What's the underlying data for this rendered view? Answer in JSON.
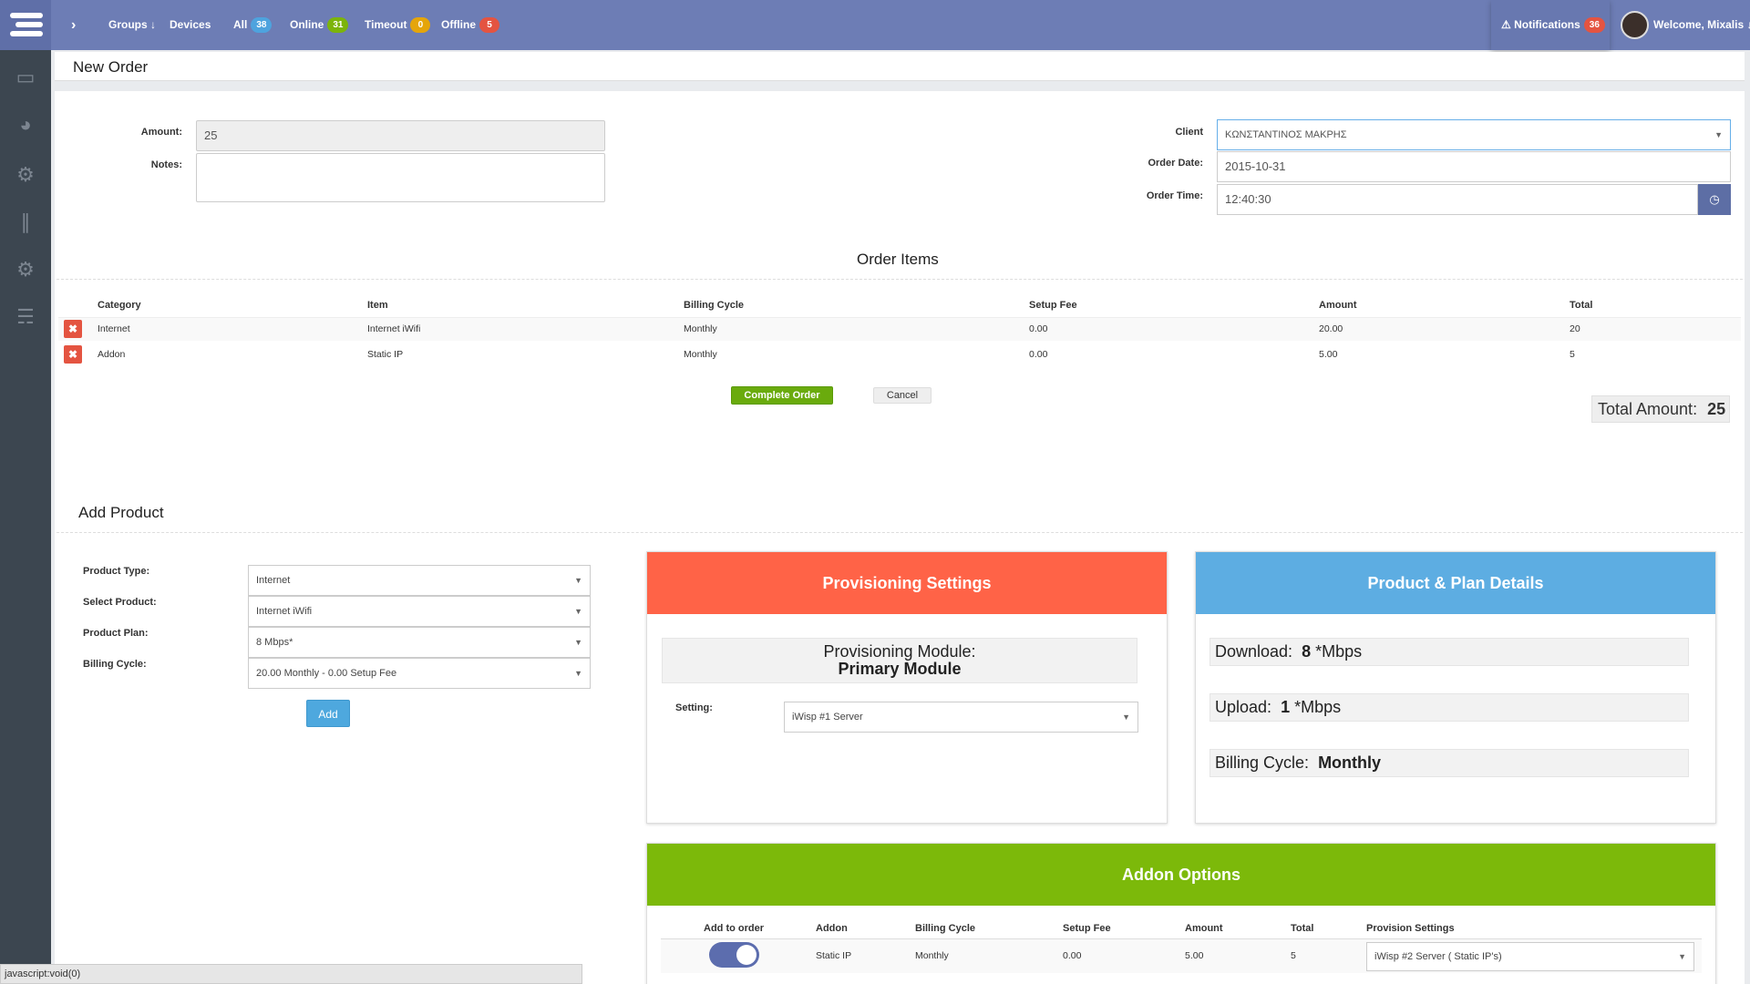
{
  "topbar": {
    "groups": "Groups",
    "devices": "Devices",
    "all_label": "All",
    "all_count": "38",
    "online_label": "Online",
    "online_count": "31",
    "timeout_label": "Timeout",
    "timeout_count": "0",
    "offline_label": "Offline",
    "offline_count": "5",
    "notifications_label": "Notifications",
    "notifications_count": "36",
    "welcome": "Welcome, Mixalis"
  },
  "page_title": "New Order",
  "order": {
    "amount_label": "Amount:",
    "amount_value": "25",
    "notes_label": "Notes:",
    "client_label": "Client",
    "client_value": "ΚΩΝΣΤΑΝΤΙΝΟΣ ΜΑΚΡΗΣ",
    "date_label": "Order Date:",
    "date_value": "2015-10-31",
    "time_label": "Order Time:",
    "time_value": "12:40:30"
  },
  "order_items": {
    "title": "Order Items",
    "columns": [
      "Category",
      "Item",
      "Billing Cycle",
      "Setup Fee",
      "Amount",
      "Total"
    ],
    "rows": [
      [
        "Internet",
        "Internet iWifi",
        "Monthly",
        "0.00",
        "20.00",
        "20"
      ],
      [
        "Addon",
        "Static IP",
        "Monthly",
        "0.00",
        "5.00",
        "5"
      ]
    ],
    "complete_label": "Complete Order",
    "cancel_label": "Cancel",
    "total_label": "Total Amount:",
    "total_value": "25"
  },
  "add_product": {
    "title": "Add Product",
    "product_type_label": "Product Type:",
    "product_type_value": "Internet",
    "select_product_label": "Select Product:",
    "select_product_value": "Internet iWifi",
    "plan_label": "Product Plan:",
    "plan_value": "8 Mbps*",
    "billing_label": "Billing Cycle:",
    "billing_value": "20.00 Monthly - 0.00 Setup Fee",
    "add_label": "Add"
  },
  "provisioning": {
    "title": "Provisioning Settings",
    "module_label": "Provisioning Module:",
    "module_value": "Primary Module",
    "setting_label": "Setting:",
    "setting_value": "iWisp #1 Server"
  },
  "plan_details": {
    "title": "Product & Plan Details",
    "download_label": "Download:",
    "download_value": "8",
    "download_unit": "*Mbps",
    "upload_label": "Upload:",
    "upload_value": "1",
    "upload_unit": "*Mbps",
    "billing_label": "Billing Cycle:",
    "billing_value": "Monthly"
  },
  "addons": {
    "title": "Addon Options",
    "columns": [
      "Add to order",
      "Addon",
      "Billing Cycle",
      "Setup Fee",
      "Amount",
      "Total",
      "Provision Settings"
    ],
    "row": [
      "Static IP",
      "Monthly",
      "0.00",
      "5.00",
      "5",
      "iWisp #2 Server ( Static IP's)"
    ],
    "add_to_order": true
  },
  "statusbar": "javascript:void(0)",
  "colors": {
    "topbar": "#6d7db5",
    "sidebar": "#3c4650",
    "provisioning_header": "#ff6347",
    "plan_header": "#5dade2",
    "addon_header": "#7cb90a",
    "complete_button": "#6aab0d"
  }
}
